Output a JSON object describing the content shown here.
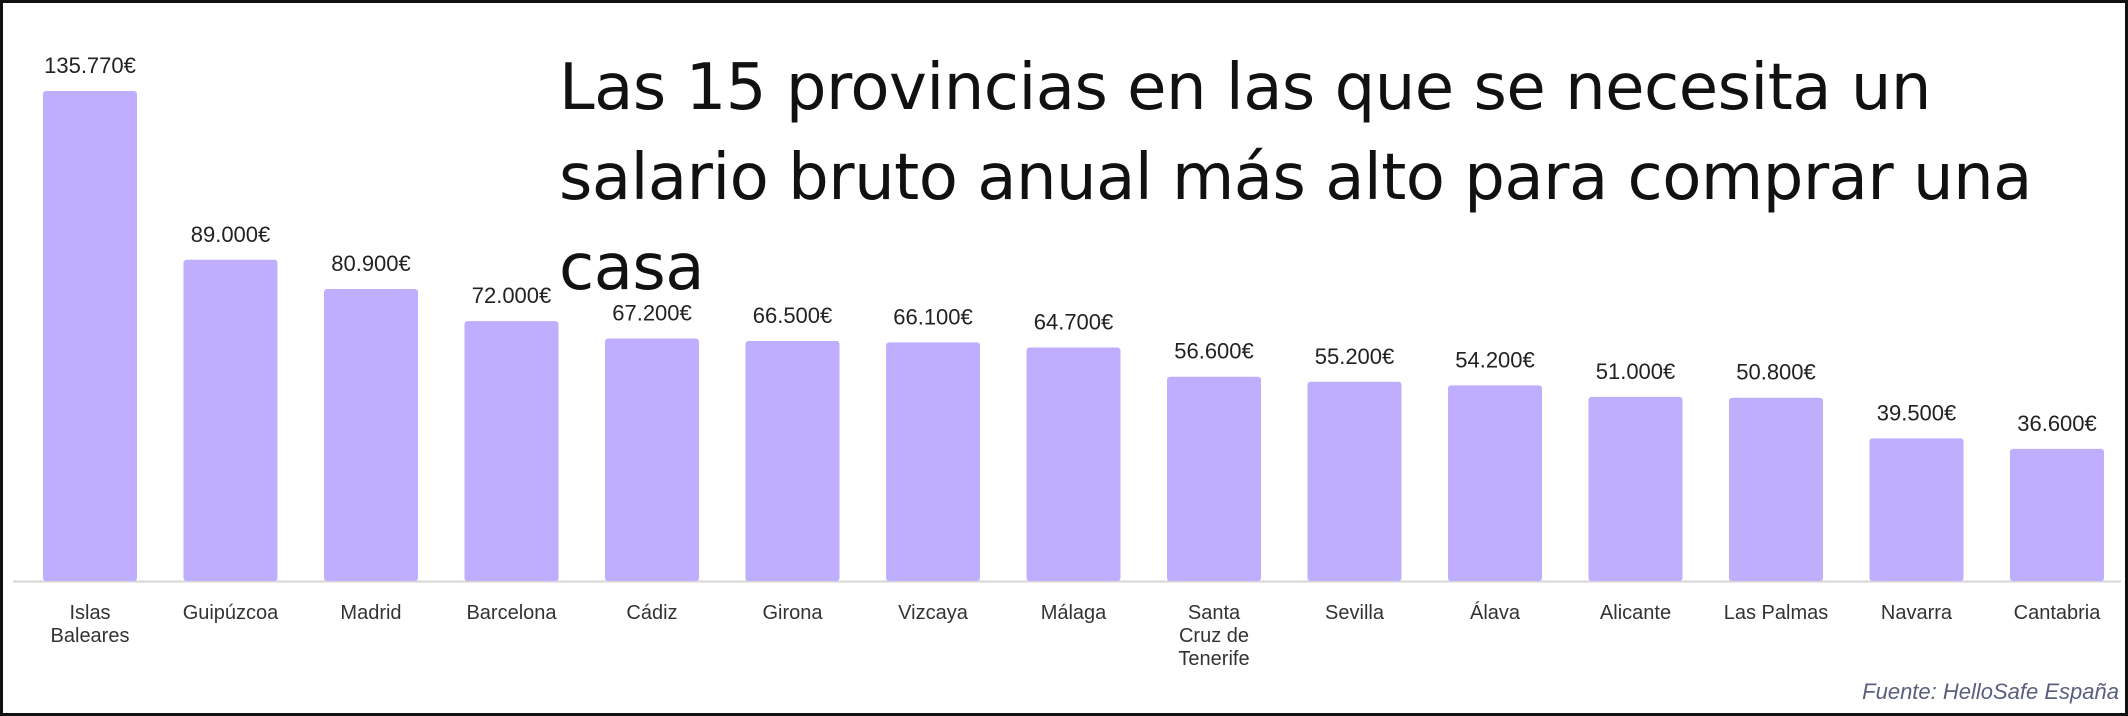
{
  "chart_data": {
    "type": "bar",
    "title": "Las 15 provincias en las que se necesita un salario bruto anual más alto para comprar una casa",
    "source": "Fuente: HelloSafe España",
    "bar_color": "#bfaefe",
    "categories": [
      [
        "Islas",
        "Baleares"
      ],
      [
        "Guipúzcoa"
      ],
      [
        "Madrid"
      ],
      [
        "Barcelona"
      ],
      [
        "Cádiz"
      ],
      [
        "Girona"
      ],
      [
        "Vizcaya"
      ],
      [
        "Málaga"
      ],
      [
        "Santa",
        "Cruz de",
        "Tenerife"
      ],
      [
        "Sevilla"
      ],
      [
        "Álava"
      ],
      [
        "Alicante"
      ],
      [
        "Las Palmas"
      ],
      [
        "Navarra"
      ],
      [
        "Cantabria"
      ]
    ],
    "values": [
      135770,
      89000,
      80900,
      72000,
      67200,
      66500,
      66100,
      64700,
      56600,
      55200,
      54200,
      51000,
      50800,
      39500,
      36600
    ],
    "value_labels": [
      "135.770€",
      "89.000€",
      "80.900€",
      "72.000€",
      "67.200€",
      "66.500€",
      "66.100€",
      "64.700€",
      "56.600€",
      "55.200€",
      "54.200€",
      "51.000€",
      "50.800€",
      "39.500€",
      "36.600€"
    ],
    "ylim": [
      0,
      135770
    ],
    "grid": false,
    "legend": "none"
  }
}
